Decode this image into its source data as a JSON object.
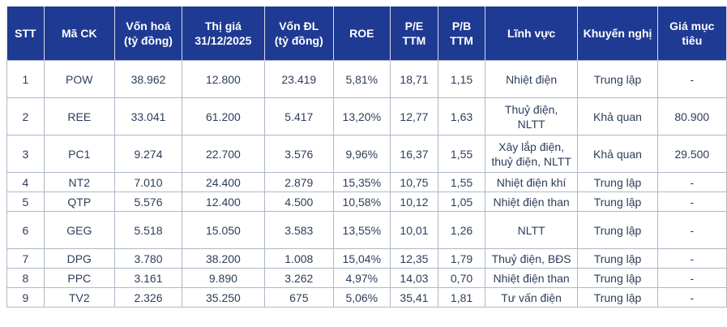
{
  "headers": [
    "STT",
    "Mã CK",
    "Vốn hoá\n(tỷ đồng)",
    "Thị giá\n31/12/2025",
    "Vốn ĐL\n(tỷ đồng)",
    "ROE",
    "P/E\nTTM",
    "P/B\nTTM",
    "Lĩnh vực",
    "Khuyến nghị",
    "Giá mục\ntiêu"
  ],
  "rows": [
    [
      "1",
      "POW",
      "38.962",
      "12.800",
      "23.419",
      "5,81%",
      "18,71",
      "1,15",
      "Nhiệt điện",
      "Trung lập",
      "-"
    ],
    [
      "2",
      "REE",
      "33.041",
      "61.200",
      "5.417",
      "13,20%",
      "12,77",
      "1,63",
      "Thuỷ điện,\nNLTT",
      "Khả quan",
      "80.900"
    ],
    [
      "3",
      "PC1",
      "9.274",
      "22.700",
      "3.576",
      "9,96%",
      "16,37",
      "1,55",
      "Xây lắp điện,\nthuỷ điện, NLTT",
      "Khả quan",
      "29.500"
    ],
    [
      "4",
      "NT2",
      "7.010",
      "24.400",
      "2.879",
      "15,35%",
      "10,75",
      "1,55",
      "Nhiệt điện khí",
      "Trung lập",
      "-"
    ],
    [
      "5",
      "QTP",
      "5.576",
      "12.400",
      "4.500",
      "10,58%",
      "10,12",
      "1,05",
      "Nhiệt điện than",
      "Trung lập",
      "-"
    ],
    [
      "6",
      "GEG",
      "5.518",
      "15.050",
      "3.583",
      "13,55%",
      "10,01",
      "1,26",
      "NLTT",
      "Trung lập",
      "-"
    ],
    [
      "7",
      "DPG",
      "3.780",
      "38.200",
      "1.008",
      "15,04%",
      "12,35",
      "1,79",
      "Thuỷ điện, BĐS",
      "Trung lập",
      "-"
    ],
    [
      "8",
      "PPC",
      "3.161",
      "9.890",
      "3.262",
      "4,97%",
      "14,03",
      "0,70",
      "Nhiệt điện than",
      "Trung lập",
      "-"
    ],
    [
      "9",
      "TV2",
      "2.326",
      "35.250",
      "675",
      "5,06%",
      "35,41",
      "1,81",
      "Tư vấn điện",
      "Trung lập",
      "-"
    ]
  ]
}
